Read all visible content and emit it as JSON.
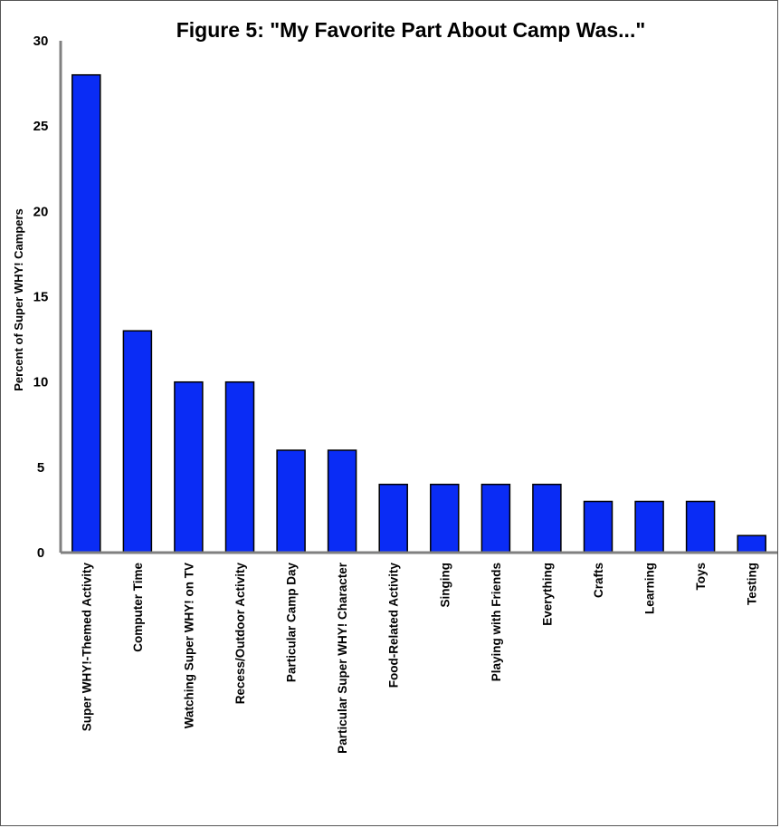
{
  "chart_data": {
    "type": "bar",
    "title": "Figure 5: \"My Favorite Part About Camp Was...\"",
    "xlabel": "",
    "ylabel": "Percent of Super WHY! Campers",
    "ylim": [
      0,
      30
    ],
    "yticks": [
      0,
      5,
      10,
      15,
      20,
      25,
      30
    ],
    "grid": false,
    "bar_color": "#0a2cf5",
    "categories": [
      "Super WHY!-Themed Activity",
      "Computer Time",
      "Watching Super WHY! on TV",
      "Recess/Outdoor Activity",
      "Particular Camp Day",
      "Particular Super WHY! Character",
      "Food-Related Activity",
      "Singing",
      "Playing with Friends",
      "Everything",
      "Crafts",
      "Learning",
      "Toys",
      "Testing"
    ],
    "values": [
      28,
      13,
      10,
      10,
      6,
      6,
      4,
      4,
      4,
      4,
      3,
      3,
      3,
      1
    ]
  }
}
